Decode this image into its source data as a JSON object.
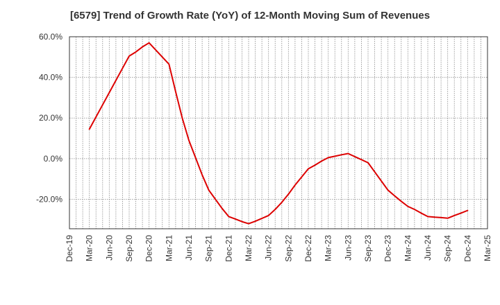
{
  "chart_data": {
    "type": "line",
    "title": "[6579]  Trend of Growth Rate (YoY) of 12-Month Moving Sum of Revenues",
    "xlabel": "",
    "ylabel": "",
    "x_ticks": [
      "Dec-19",
      "Mar-20",
      "Jun-20",
      "Sep-20",
      "Dec-20",
      "Mar-21",
      "Jun-21",
      "Sep-21",
      "Dec-21",
      "Mar-22",
      "Jun-22",
      "Sep-22",
      "Dec-22",
      "Mar-23",
      "Jun-23",
      "Sep-23",
      "Dec-23",
      "Mar-24",
      "Jun-24",
      "Sep-24",
      "Dec-24",
      "Mar-25"
    ],
    "y_ticks": [
      "60.0%",
      "40.0%",
      "20.0%",
      "0.0%",
      "-20.0%"
    ],
    "y_tick_values": [
      60,
      40,
      20,
      0,
      -20
    ],
    "ylim": [
      -34.5,
      60
    ],
    "x_range": [
      "Dec-19",
      "Mar-25"
    ],
    "grid": true,
    "line_color": "#dd0000",
    "series": [
      {
        "name": "",
        "x": [
          "Mar-20",
          "Apr-20",
          "May-20",
          "Jun-20",
          "Jul-20",
          "Aug-20",
          "Sep-20",
          "Oct-20",
          "Nov-20",
          "Dec-20",
          "Jan-21",
          "Feb-21",
          "Mar-21",
          "Apr-21",
          "May-21",
          "Jun-21",
          "Jul-21",
          "Aug-21",
          "Sep-21",
          "Oct-21",
          "Nov-21",
          "Dec-21",
          "Jan-22",
          "Feb-22",
          "Mar-22",
          "Apr-22",
          "May-22",
          "Jun-22",
          "Jul-22",
          "Aug-22",
          "Sep-22",
          "Oct-22",
          "Nov-22",
          "Dec-22",
          "Jan-23",
          "Feb-23",
          "Mar-23",
          "Apr-23",
          "May-23",
          "Jun-23",
          "Jul-23",
          "Aug-23",
          "Sep-23",
          "Oct-23",
          "Nov-23",
          "Dec-23",
          "Jan-24",
          "Feb-24",
          "Mar-24",
          "Apr-24",
          "May-24",
          "Jun-24",
          "Jul-24",
          "Aug-24",
          "Sep-24",
          "Oct-24",
          "Nov-24",
          "Dec-24"
        ],
        "values": [
          14.5,
          20.5,
          26.5,
          32.5,
          38.5,
          44.5,
          50.5,
          52.5,
          55.0,
          57.0,
          53.5,
          50.0,
          46.5,
          33.0,
          20.0,
          9.0,
          0.5,
          -8.0,
          -15.5,
          -20.0,
          -24.5,
          -28.5,
          -29.7,
          -31.0,
          -32.0,
          -30.8,
          -29.4,
          -28.0,
          -25.0,
          -21.5,
          -17.5,
          -13.0,
          -9.0,
          -5.0,
          -3.2,
          -1.2,
          0.5,
          1.2,
          1.9,
          2.5,
          1.0,
          -0.5,
          -2.0,
          -6.5,
          -11.0,
          -15.5,
          -18.3,
          -21.0,
          -23.5,
          -25.0,
          -26.8,
          -28.5,
          -28.8,
          -29.0,
          -29.3,
          -28.0,
          -26.8,
          -25.5
        ]
      }
    ]
  }
}
